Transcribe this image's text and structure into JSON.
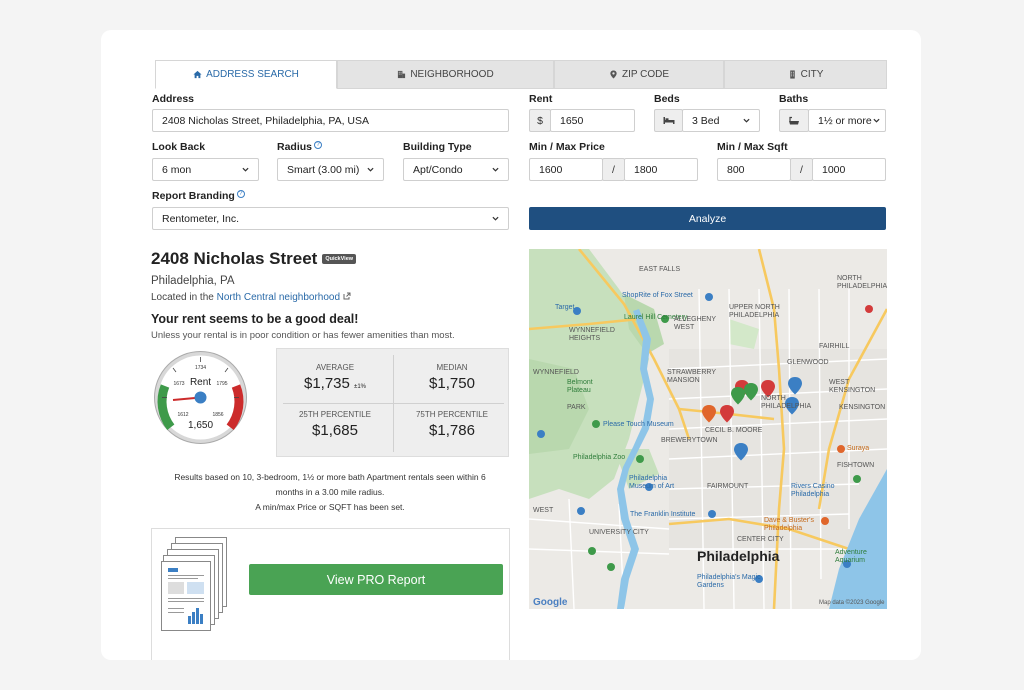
{
  "tabs": [
    {
      "label": "ADDRESS SEARCH",
      "icon": "home-icon",
      "active": true
    },
    {
      "label": "NEIGHBORHOOD",
      "icon": "building-icon",
      "active": false
    },
    {
      "label": "ZIP CODE",
      "icon": "map-pin-icon",
      "active": false
    },
    {
      "label": "CITY",
      "icon": "city-icon",
      "active": false
    }
  ],
  "form": {
    "address_label": "Address",
    "address_value": "2408 Nicholas Street, Philadelphia, PA, USA",
    "rent_label": "Rent",
    "rent_prefix": "$",
    "rent_value": "1650",
    "beds_label": "Beds",
    "beds_value": "3 Bed",
    "baths_label": "Baths",
    "baths_value": "1½ or more",
    "lookback_label": "Look Back",
    "lookback_value": "6 mon",
    "radius_label": "Radius",
    "radius_value": "Smart (3.00 mi)",
    "building_label": "Building Type",
    "building_value": "Apt/Condo",
    "price_label": "Min / Max Price",
    "price_min": "1600",
    "price_max": "1800",
    "sqft_label": "Min / Max Sqft",
    "sqft_min": "800",
    "sqft_max": "1000",
    "separator": "/",
    "branding_label": "Report Branding",
    "branding_value": "Rentometer, Inc.",
    "analyze_label": "Analyze",
    "help_glyph": "?"
  },
  "result": {
    "title": "2408 Nicholas Street",
    "quickview": "QuickView",
    "city": "Philadelphia, PA",
    "located_prefix": "Located in the",
    "neighborhood_link": "North Central neighborhood",
    "deal_title": "Your rent seems to be a good deal!",
    "deal_sub": "Unless your rental is in poor condition or has fewer amenities than most."
  },
  "gauge": {
    "label": "Rent",
    "value": "1,650",
    "tick_top": "1734",
    "tick_left": "1673",
    "tick_right": "1795",
    "tick_bl": "1612",
    "tick_br": "1856"
  },
  "stats": {
    "average_label": "AVERAGE",
    "average_value": "$1,735",
    "average_pm": "±1%",
    "median_label": "MEDIAN",
    "median_value": "$1,750",
    "p25_label": "25TH PERCENTILE",
    "p25_value": "$1,685",
    "p75_label": "75TH PERCENTILE",
    "p75_value": "$1,786"
  },
  "basis": {
    "line1": "Results based on 10, 3-bedroom, 1½ or more bath Apartment rentals seen within 6",
    "line2": "months in a 3.00 mile radius.",
    "line3": "A min/max Price or SQFT has been set."
  },
  "pro": {
    "button_label": "View PRO Report"
  },
  "map": {
    "city_label": "Philadelphia",
    "labels": [
      "EAST FALLS",
      "NORTH PHILADELPHIA",
      "Target",
      "ShopRite of Fox Street",
      "WYNNEFIELD HEIGHTS",
      "Laurel Hill Cemetery",
      "ALLEGHENY WEST",
      "UPPER NORTH PHILADELPHIA",
      "FAIRHILL",
      "GLENWOOD",
      "STRAWBERRY MANSION",
      "WYNNEFIELD",
      "Belmont Plateau",
      "WEST KENSINGTON",
      "KENSINGTON",
      "NORTH PHILADELPHIA",
      "PARK",
      "Please Touch Museum",
      "CECIL B. MOORE",
      "BREWERYTOWN",
      "Philadelphia Zoo",
      "Suraya",
      "FISHTOWN",
      "FAIRMOUNT",
      "Philadelphia Museum of Art",
      "Rivers Casino Philadelphia",
      "WEST",
      "The Franklin Institute",
      "UNIVERSITY CITY",
      "CENTER CITY",
      "Dave & Buster's Philadelphia",
      "Adventure Aquarium",
      "Philadelphia's Magic Gardens",
      "Google",
      "Map data ©2023 Google"
    ]
  }
}
